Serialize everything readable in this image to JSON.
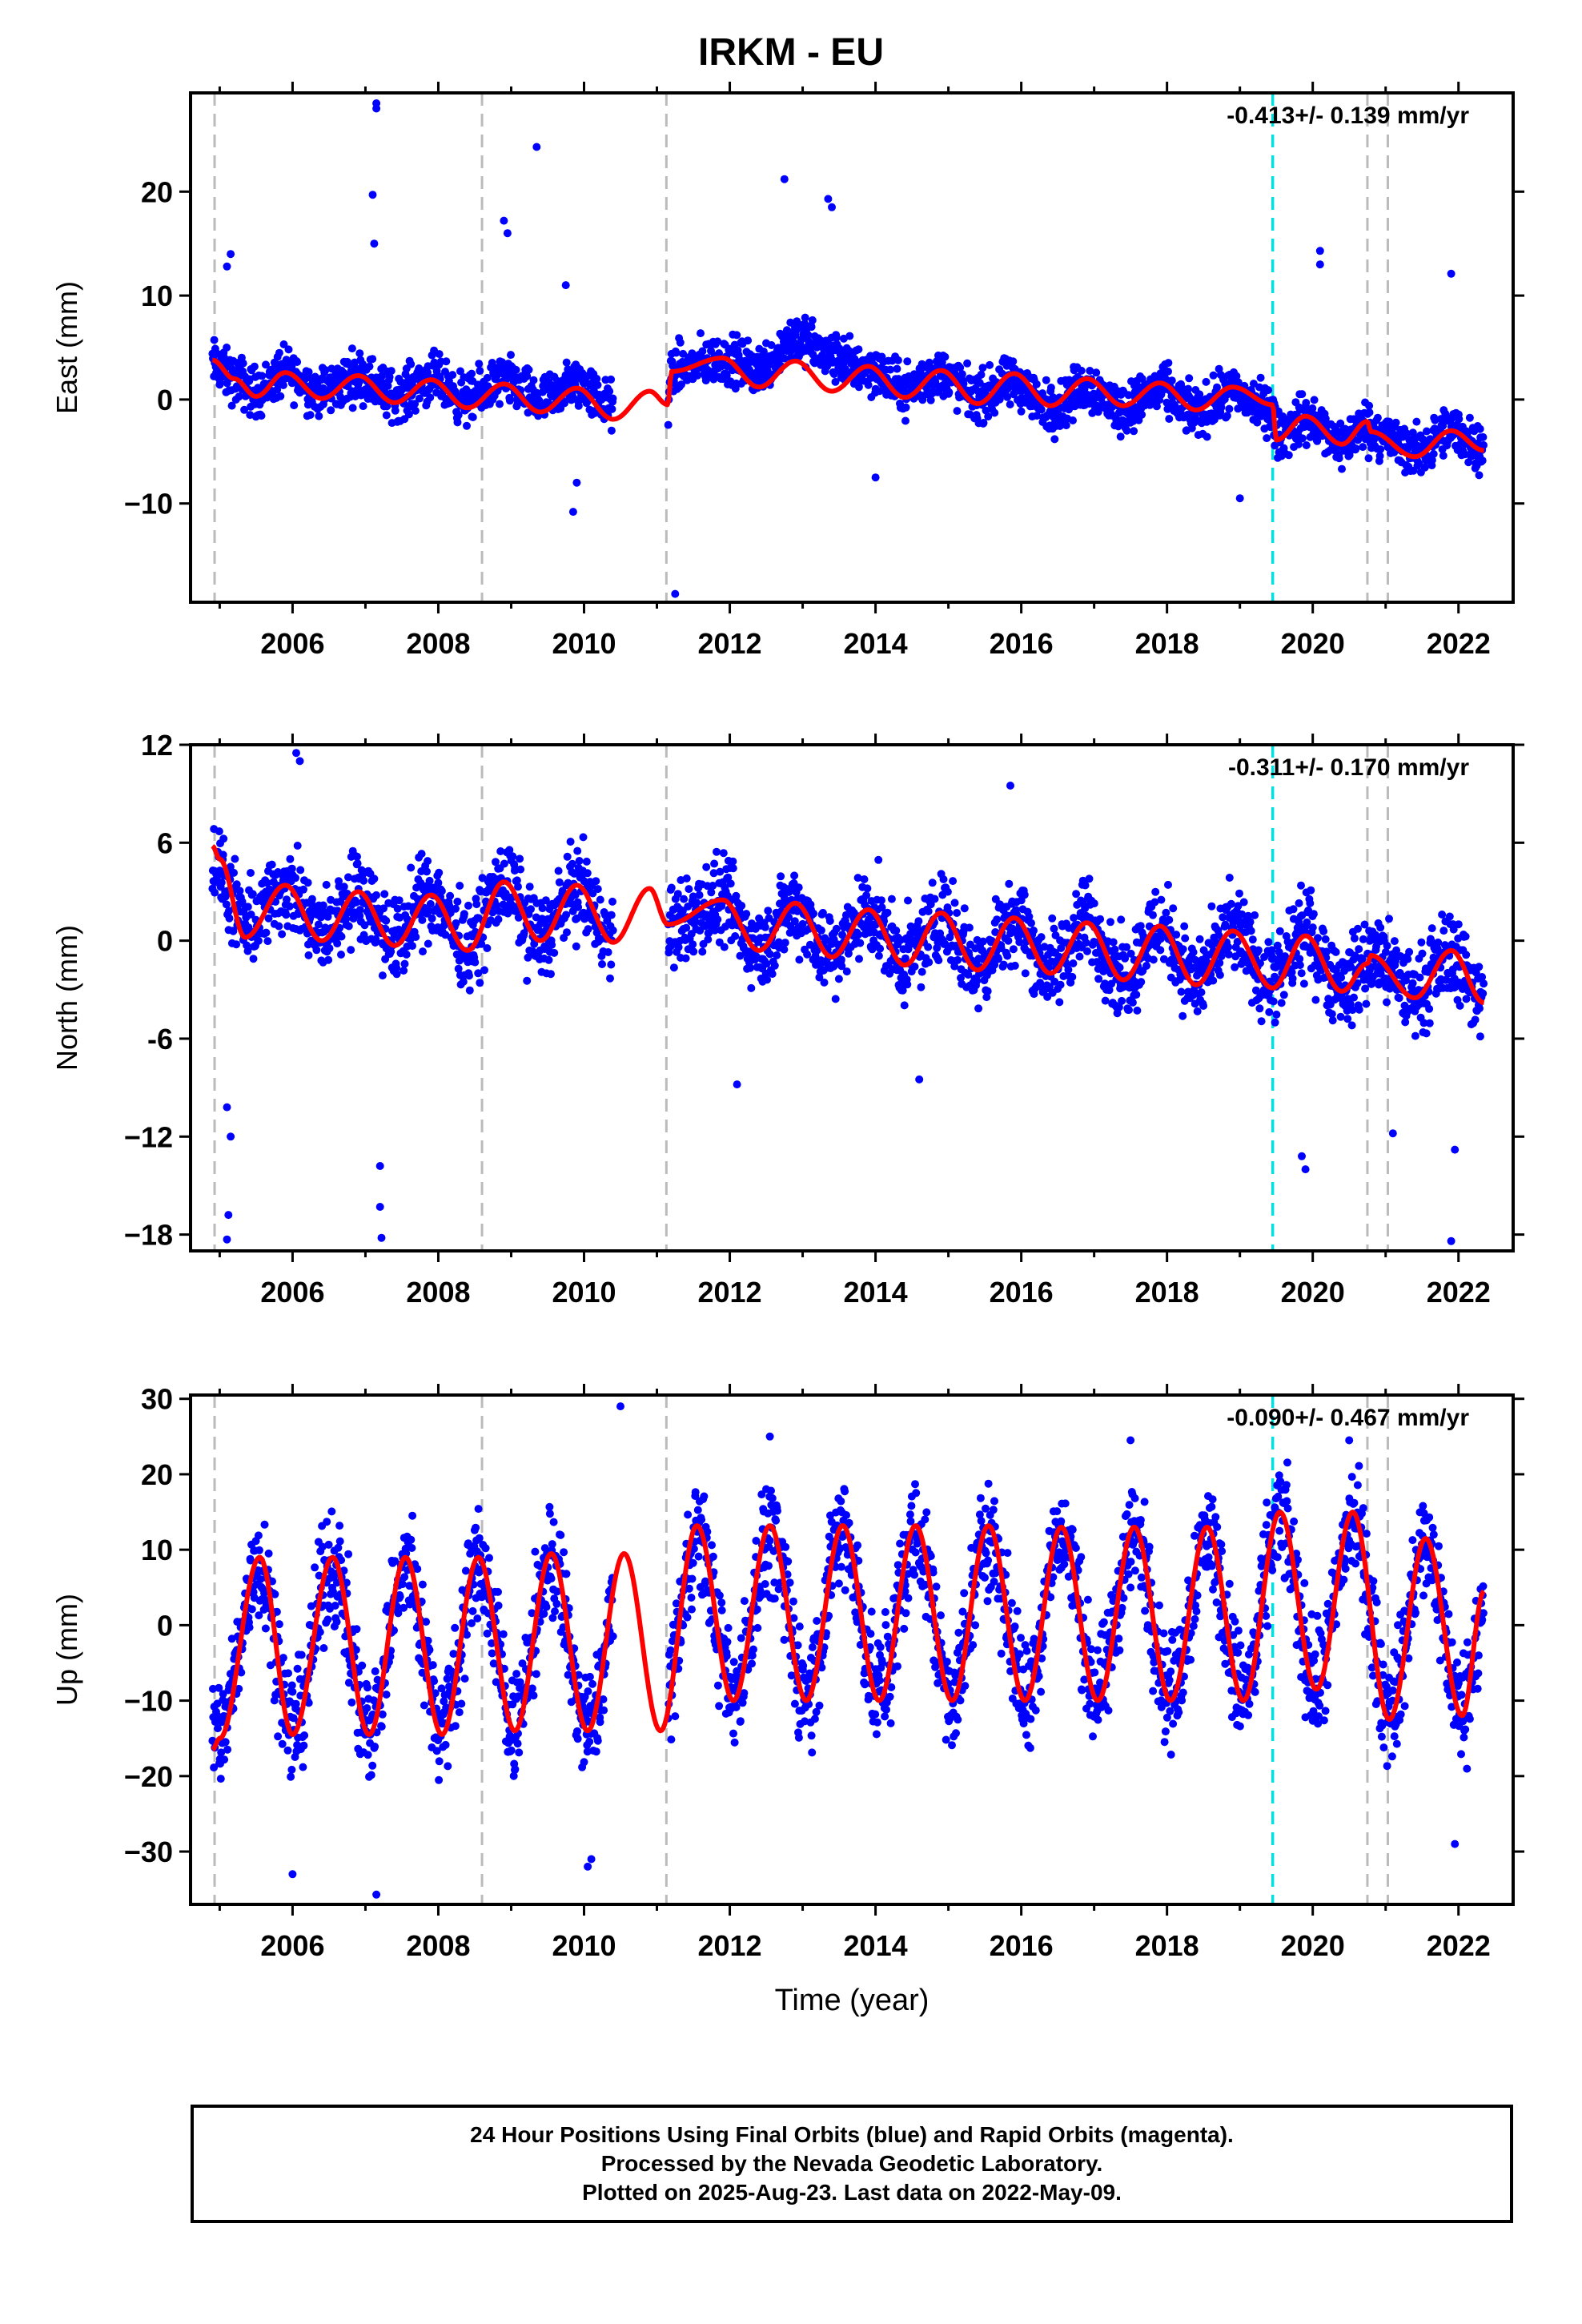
{
  "title": "IRKM - EU",
  "colors": {
    "final_points": "#0000ff",
    "model_fit": "#ff0000",
    "equipment_change_line": "#bbbbbb",
    "earthquake_line": "#00e0e0",
    "axis": "#000000"
  },
  "xaxis": {
    "label": "Time (year)",
    "range": [
      2004.6,
      2022.75
    ],
    "ticks": [
      2006,
      2008,
      2010,
      2012,
      2014,
      2016,
      2018,
      2020,
      2022
    ],
    "tick_labels": [
      "2006",
      "2008",
      "2010",
      "2012",
      "2014",
      "2016",
      "2018",
      "2020",
      "2022"
    ]
  },
  "footer": {
    "line1": "24 Hour Positions Using Final Orbits (blue) and Rapid Orbits (magenta).",
    "line2": "Processed by the Nevada Geodetic Laboratory.",
    "line3": "Plotted on 2025-Aug-23. Last data on 2022-May-09."
  },
  "chart_data": [
    {
      "type": "scatter",
      "component": "east",
      "ylabel": "East (mm)",
      "ylim": [
        -19.5,
        29.5
      ],
      "yticks": [
        -10,
        0,
        10,
        20
      ],
      "ytick_labels": [
        "−10",
        "0",
        "10",
        "20"
      ],
      "velocity_label": "-0.413+/- 0.139 mm/yr",
      "data_range": [
        2004.9,
        2022.35
      ],
      "gap": [
        2010.4,
        2011.15
      ],
      "series": [
        {
          "role": "model fit",
          "x": [
            2004.9,
            2005.2,
            2005.5,
            2005.9,
            2006.4,
            2006.9,
            2007.4,
            2007.9,
            2008.4,
            2008.9,
            2009.4,
            2009.9,
            2010.4,
            2010.9,
            2011.15,
            2011.2,
            2011.9,
            2012.4,
            2012.9,
            2013.4,
            2013.9,
            2014.4,
            2014.9,
            2015.4,
            2015.9,
            2016.4,
            2016.9,
            2017.4,
            2017.9,
            2018.4,
            2018.9,
            2019.45,
            2019.5,
            2019.9,
            2020.4,
            2020.75,
            2020.8,
            2021.4,
            2021.9,
            2022.35
          ],
          "y": [
            3.8,
            2.0,
            0.3,
            2.6,
            0.1,
            2.3,
            -0.3,
            1.9,
            -0.8,
            1.5,
            -1.2,
            1.1,
            -1.9,
            0.8,
            -0.5,
            2.7,
            4.0,
            1.2,
            3.7,
            0.8,
            3.2,
            0.2,
            2.8,
            -0.4,
            2.5,
            -0.6,
            2.0,
            -0.6,
            1.6,
            -1.0,
            1.2,
            -0.5,
            -3.9,
            -1.6,
            -4.3,
            -2.1,
            -3.1,
            -5.5,
            -3.0,
            -4.9
          ]
        },
        {
          "role": "daily positions",
          "base": [
            3.4,
            2.0,
            0.7,
            2.5,
            0.8,
            2.3,
            0.4,
            2.0,
            0.0,
            1.8,
            -0.2,
            1.5,
            -0.6,
            0.8,
            -0.6,
            2.8,
            3.8,
            3.0,
            6.0,
            4.0,
            3.0,
            1.0,
            2.4,
            0.2,
            1.6,
            -0.8,
            1.2,
            -0.9,
            1.0,
            -1.2,
            0.6,
            -1.0,
            -3.5,
            -1.9,
            -4.2,
            -2.5,
            -3.0,
            -5.0,
            -3.1,
            -4.5
          ],
          "base_x": [
            2004.9,
            2005.2,
            2005.5,
            2005.9,
            2006.4,
            2006.9,
            2007.4,
            2007.9,
            2008.4,
            2008.9,
            2009.4,
            2009.9,
            2010.4,
            2010.9,
            2011.15,
            2011.2,
            2011.9,
            2012.4,
            2012.9,
            2013.4,
            2013.9,
            2014.4,
            2014.9,
            2015.4,
            2015.9,
            2016.4,
            2016.9,
            2017.4,
            2017.9,
            2018.4,
            2018.9,
            2019.45,
            2019.5,
            2019.9,
            2020.4,
            2020.75,
            2020.8,
            2021.4,
            2021.9,
            2022.35
          ],
          "scatter_half_width": 2.2,
          "outlier_x": [
            2007.15,
            2007.15,
            2007.1,
            2007.12,
            2009.35,
            2008.9,
            2008.95,
            2009.75,
            2009.85,
            2011.25,
            2005.15,
            2005.1,
            2012.75,
            2013.35,
            2013.4,
            2020.1,
            2020.1,
            2021.9,
            2009.9,
            2014.0,
            2019.0
          ],
          "outlier_y": [
            28.5,
            28.0,
            19.7,
            15.0,
            24.3,
            17.2,
            16.0,
            11.0,
            -10.8,
            -18.7,
            14.0,
            12.8,
            21.2,
            19.3,
            18.5,
            14.3,
            13.0,
            12.1,
            -8.0,
            -7.5,
            -9.5
          ]
        }
      ]
    },
    {
      "type": "scatter",
      "component": "north",
      "ylabel": "North (mm)",
      "ylim": [
        -19,
        12
      ],
      "yticks": [
        -18,
        -12,
        -6,
        0,
        6,
        12
      ],
      "ytick_labels": [
        "−18",
        "−12",
        "-6",
        "0",
        "6",
        "12"
      ],
      "velocity_label": "-0.311+/- 0.170 mm/yr",
      "data_range": [
        2004.9,
        2022.35
      ],
      "gap": [
        2010.4,
        2011.15
      ],
      "series": [
        {
          "role": "model fit",
          "x": [
            2004.9,
            2005.0,
            2005.35,
            2005.9,
            2006.4,
            2006.9,
            2007.4,
            2007.9,
            2008.4,
            2008.9,
            2009.4,
            2009.9,
            2010.4,
            2010.9,
            2011.15,
            2011.9,
            2012.4,
            2012.9,
            2013.4,
            2013.9,
            2014.4,
            2014.9,
            2015.4,
            2015.9,
            2016.4,
            2016.9,
            2017.4,
            2017.9,
            2018.4,
            2018.9,
            2019.45,
            2019.9,
            2020.4,
            2020.75,
            2020.8,
            2021.4,
            2021.9,
            2022.35
          ],
          "y": [
            5.8,
            5.0,
            0.2,
            3.4,
            0.0,
            3.0,
            -0.3,
            2.8,
            -0.6,
            3.6,
            0.0,
            3.4,
            -0.1,
            3.2,
            1.0,
            2.5,
            -0.6,
            2.3,
            -1.0,
            1.9,
            -1.5,
            1.7,
            -1.8,
            1.4,
            -2.0,
            1.1,
            -2.4,
            0.9,
            -2.7,
            0.6,
            -2.9,
            0.3,
            -3.1,
            -1.4,
            -0.9,
            -3.5,
            -0.6,
            -3.8
          ]
        },
        {
          "role": "daily positions",
          "base": [
            4.8,
            4.0,
            0.8,
            3.2,
            0.4,
            3.0,
            0.0,
            2.8,
            -0.3,
            3.4,
            0.2,
            3.2,
            0.1,
            2.8,
            0.8,
            2.3,
            -0.5,
            2.1,
            -0.9,
            1.8,
            -1.3,
            1.6,
            -1.6,
            1.4,
            -1.8,
            1.1,
            -2.2,
            0.9,
            -2.5,
            0.6,
            -2.7,
            0.4,
            -2.8,
            -1.3,
            -0.9,
            -3.2,
            -0.8,
            -3.6
          ],
          "base_x": [
            2004.9,
            2005.0,
            2005.35,
            2005.9,
            2006.4,
            2006.9,
            2007.4,
            2007.9,
            2008.4,
            2008.9,
            2009.4,
            2009.9,
            2010.4,
            2010.9,
            2011.15,
            2011.9,
            2012.4,
            2012.9,
            2013.4,
            2013.9,
            2014.4,
            2014.9,
            2015.4,
            2015.9,
            2016.4,
            2016.9,
            2017.4,
            2017.9,
            2018.4,
            2018.9,
            2019.45,
            2019.9,
            2020.4,
            2020.75,
            2020.8,
            2021.4,
            2021.9,
            2022.35
          ],
          "scatter_half_width": 2.4,
          "outlier_x": [
            2005.1,
            2005.12,
            2005.15,
            2005.1,
            2007.2,
            2007.2,
            2007.22,
            2006.05,
            2006.1,
            2015.85,
            2019.85,
            2019.9,
            2021.1,
            2021.9,
            2021.95,
            2014.6,
            2012.1
          ],
          "outlier_y": [
            -18.3,
            -16.8,
            -12.0,
            -10.2,
            -13.8,
            -16.3,
            -18.2,
            11.5,
            11.0,
            9.5,
            -13.2,
            -14.0,
            -11.8,
            -18.4,
            -12.8,
            -8.5,
            -8.8
          ]
        }
      ]
    },
    {
      "type": "scatter",
      "component": "up",
      "ylabel": "Up (mm)",
      "ylim": [
        -37,
        30.5
      ],
      "yticks": [
        -30,
        -20,
        -10,
        0,
        10,
        20,
        30
      ],
      "ytick_labels": [
        "−30",
        "−20",
        "−10",
        "0",
        "10",
        "20",
        "30"
      ],
      "velocity_label": "-0.090+/- 0.467 mm/yr",
      "data_range": [
        2004.9,
        2022.35
      ],
      "gap": [
        2010.4,
        2011.15
      ],
      "series": [
        {
          "role": "model fit",
          "x": [
            2004.9,
            2005.0,
            2005.55,
            2006.0,
            2006.55,
            2007.05,
            2007.55,
            2008.05,
            2008.55,
            2009.05,
            2009.55,
            2010.05,
            2010.55,
            2011.05,
            2011.55,
            2012.05,
            2012.55,
            2013.05,
            2013.55,
            2014.05,
            2014.55,
            2015.05,
            2015.55,
            2016.05,
            2016.55,
            2017.05,
            2017.55,
            2018.05,
            2018.55,
            2019.05,
            2019.55,
            2020.05,
            2020.55,
            2021.05,
            2021.55,
            2022.05,
            2022.35
          ],
          "y": [
            -16.5,
            -15.0,
            9.0,
            -14.5,
            9.0,
            -14.5,
            9.0,
            -14.5,
            9.0,
            -14.0,
            9.5,
            -14.0,
            9.5,
            -14.0,
            13.2,
            -10.0,
            13.2,
            -10.0,
            13.2,
            -10.0,
            13.2,
            -10.0,
            13.2,
            -10.0,
            13.0,
            -10.0,
            13.0,
            -10.0,
            13.0,
            -10.0,
            15.0,
            -8.5,
            15.0,
            -12.5,
            11.5,
            -12.0,
            4.5
          ]
        },
        {
          "role": "daily positions",
          "base": [
            -15.0,
            -14.0,
            8.5,
            -13.5,
            8.0,
            -13.5,
            8.0,
            -13.0,
            8.0,
            -13.0,
            8.5,
            -14.0,
            8.0,
            -12.0,
            12.0,
            -9.0,
            12.0,
            -9.0,
            12.0,
            -9.0,
            12.0,
            -9.0,
            12.0,
            -9.0,
            12.0,
            -9.0,
            12.0,
            -9.0,
            12.0,
            -9.0,
            14.0,
            -8.0,
            14.0,
            -11.0,
            10.5,
            -11.0,
            3.0
          ],
          "base_x": [
            2004.9,
            2005.0,
            2005.55,
            2006.0,
            2006.55,
            2007.05,
            2007.55,
            2008.05,
            2008.55,
            2009.05,
            2009.55,
            2010.05,
            2010.55,
            2011.05,
            2011.55,
            2012.05,
            2012.55,
            2013.05,
            2013.55,
            2014.05,
            2014.55,
            2015.05,
            2015.55,
            2016.05,
            2016.55,
            2017.05,
            2017.55,
            2018.05,
            2018.55,
            2019.05,
            2019.55,
            2020.05,
            2020.55,
            2021.05,
            2021.55,
            2022.05,
            2022.35
          ],
          "scatter_half_width": 7.0,
          "outlier_x": [
            2007.15,
            2010.5,
            2006.0,
            2010.05,
            2010.1,
            2021.95,
            2012.55,
            2017.5,
            2020.5
          ],
          "outlier_y": [
            -35.7,
            29.0,
            -33.0,
            -32.0,
            -31.0,
            -29.0,
            25.0,
            24.5,
            24.5
          ]
        }
      ]
    }
  ],
  "vertical_lines": {
    "equipment_x": [
      2004.93,
      2008.6,
      2011.13,
      2020.75,
      2021.03
    ],
    "earthquake_x": [
      2019.45
    ]
  }
}
